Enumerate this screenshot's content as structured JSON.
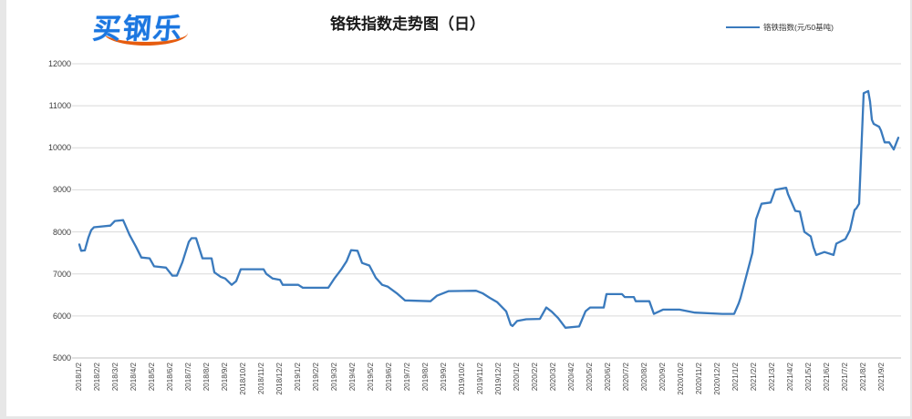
{
  "page": {
    "background": "#ffffff",
    "edge_color": "#e7e7e7"
  },
  "header": {
    "logo_text": "买钢乐",
    "logo_color": "#1c77e0",
    "logo_swoosh_color": "#e65c0f",
    "title": "铬铁指数走势图（日）"
  },
  "legend": {
    "label": "铬铁指数(元/50基吨)",
    "line_color": "#3a7abd"
  },
  "chart_data": {
    "type": "line",
    "title": "铬铁指数走势图（日）",
    "ylabel": "",
    "xlabel": "",
    "ylim": [
      5000,
      12000
    ],
    "y_ticks": [
      5000,
      6000,
      7000,
      8000,
      9000,
      10000,
      11000,
      12000
    ],
    "grid": "horizontal",
    "grid_color": "#d9d9d9",
    "legend_position": "top-right",
    "x_tick_labels": [
      "2018/1/2",
      "2018/2/2",
      "2018/3/2",
      "2018/4/2",
      "2018/5/2",
      "2018/6/2",
      "2018/7/2",
      "2018/8/2",
      "2018/9/2",
      "2018/10/2",
      "2018/11/2",
      "2018/12/2",
      "2019/1/2",
      "2019/2/2",
      "2019/3/2",
      "2019/4/2",
      "2019/5/2",
      "2019/6/2",
      "2019/7/2",
      "2019/8/2",
      "2019/9/2",
      "2019/10/2",
      "2019/11/2",
      "2019/12/2",
      "2020/1/2",
      "2020/2/2",
      "2020/3/2",
      "2020/4/2",
      "2020/5/2",
      "2020/6/2",
      "2020/7/2",
      "2020/8/2",
      "2020/9/2",
      "2020/10/2",
      "2020/11/2",
      "2020/12/2",
      "2021/1/2",
      "2021/2/2",
      "2021/3/2",
      "2021/4/2",
      "2021/5/2",
      "2021/6/2",
      "2021/7/2",
      "2021/8/2",
      "2021/9/2"
    ],
    "series": [
      {
        "name": "铬铁指数(元/50基吨)",
        "color": "#3a7abd",
        "points": [
          [
            0,
            7700
          ],
          [
            0.1,
            7550
          ],
          [
            0.3,
            7560
          ],
          [
            0.5,
            7870
          ],
          [
            0.65,
            8040
          ],
          [
            0.8,
            8110
          ],
          [
            1.7,
            8150
          ],
          [
            1.95,
            8260
          ],
          [
            2.4,
            8280
          ],
          [
            2.55,
            8130
          ],
          [
            2.75,
            7930
          ],
          [
            3.1,
            7650
          ],
          [
            3.4,
            7390
          ],
          [
            3.85,
            7370
          ],
          [
            4.1,
            7180
          ],
          [
            4.75,
            7150
          ],
          [
            5.1,
            6960
          ],
          [
            5.35,
            6960
          ],
          [
            5.65,
            7280
          ],
          [
            6.0,
            7760
          ],
          [
            6.15,
            7850
          ],
          [
            6.4,
            7850
          ],
          [
            6.75,
            7370
          ],
          [
            7.25,
            7370
          ],
          [
            7.4,
            7040
          ],
          [
            7.75,
            6930
          ],
          [
            8.0,
            6890
          ],
          [
            8.35,
            6740
          ],
          [
            8.6,
            6830
          ],
          [
            8.85,
            7110
          ],
          [
            10.1,
            7110
          ],
          [
            10.25,
            7000
          ],
          [
            10.6,
            6890
          ],
          [
            11.0,
            6860
          ],
          [
            11.15,
            6740
          ],
          [
            12.0,
            6740
          ],
          [
            12.25,
            6670
          ],
          [
            13.65,
            6670
          ],
          [
            14.0,
            6900
          ],
          [
            14.35,
            7100
          ],
          [
            14.65,
            7300
          ],
          [
            14.9,
            7565
          ],
          [
            15.25,
            7550
          ],
          [
            15.5,
            7260
          ],
          [
            15.9,
            7200
          ],
          [
            16.25,
            6910
          ],
          [
            16.6,
            6740
          ],
          [
            16.9,
            6700
          ],
          [
            17.4,
            6540
          ],
          [
            17.85,
            6370
          ],
          [
            19.25,
            6350
          ],
          [
            19.6,
            6480
          ],
          [
            20.25,
            6590
          ],
          [
            21.75,
            6600
          ],
          [
            22.1,
            6540
          ],
          [
            22.5,
            6430
          ],
          [
            22.9,
            6330
          ],
          [
            23.4,
            6110
          ],
          [
            23.65,
            5790
          ],
          [
            23.75,
            5760
          ],
          [
            24.0,
            5880
          ],
          [
            24.5,
            5920
          ],
          [
            25.25,
            5930
          ],
          [
            25.6,
            6200
          ],
          [
            25.9,
            6100
          ],
          [
            26.25,
            5950
          ],
          [
            26.65,
            5720
          ],
          [
            27.4,
            5750
          ],
          [
            27.75,
            6110
          ],
          [
            28.0,
            6200
          ],
          [
            28.75,
            6200
          ],
          [
            28.9,
            6520
          ],
          [
            29.75,
            6520
          ],
          [
            29.9,
            6450
          ],
          [
            30.4,
            6450
          ],
          [
            30.5,
            6350
          ],
          [
            31.25,
            6350
          ],
          [
            31.5,
            6050
          ],
          [
            32.0,
            6150
          ],
          [
            32.9,
            6150
          ],
          [
            33.75,
            6080
          ],
          [
            35.25,
            6050
          ],
          [
            35.9,
            6050
          ],
          [
            36.15,
            6300
          ],
          [
            36.25,
            6430
          ],
          [
            36.9,
            7500
          ],
          [
            37.1,
            8300
          ],
          [
            37.4,
            8670
          ],
          [
            37.9,
            8700
          ],
          [
            38.15,
            9000
          ],
          [
            38.75,
            9050
          ],
          [
            38.85,
            8900
          ],
          [
            39.25,
            8500
          ],
          [
            39.5,
            8480
          ],
          [
            39.75,
            8000
          ],
          [
            40.1,
            7890
          ],
          [
            40.25,
            7630
          ],
          [
            40.4,
            7450
          ],
          [
            40.85,
            7520
          ],
          [
            41.35,
            7450
          ],
          [
            41.5,
            7720
          ],
          [
            42.0,
            7830
          ],
          [
            42.25,
            8040
          ],
          [
            42.5,
            8520
          ],
          [
            42.6,
            8560
          ],
          [
            42.75,
            8670
          ],
          [
            43.0,
            11300
          ],
          [
            43.25,
            11350
          ],
          [
            43.35,
            11100
          ],
          [
            43.45,
            10670
          ],
          [
            43.55,
            10570
          ],
          [
            43.85,
            10500
          ],
          [
            43.95,
            10410
          ],
          [
            44.15,
            10130
          ],
          [
            44.4,
            10130
          ],
          [
            44.65,
            9960
          ],
          [
            44.9,
            10240
          ]
        ]
      }
    ]
  }
}
